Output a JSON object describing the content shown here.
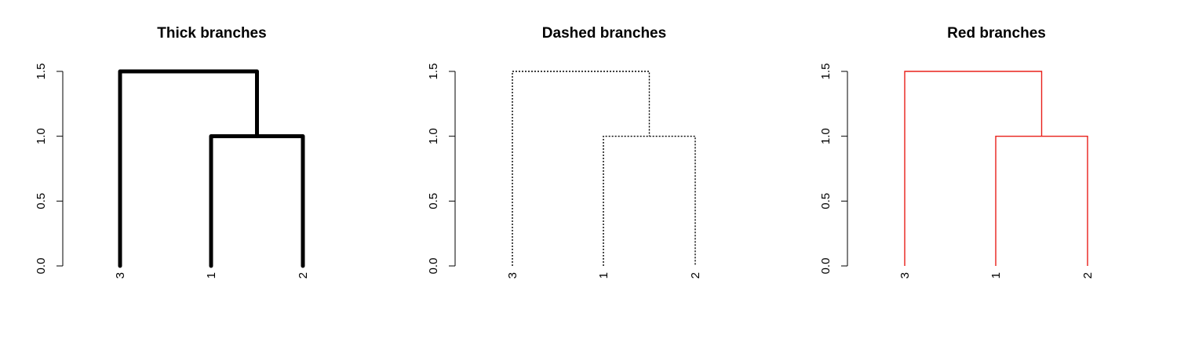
{
  "chart_data": [
    {
      "type": "dendrogram",
      "title": "Thick branches",
      "ylim": [
        0,
        1.5
      ],
      "yticks": [
        "0.0",
        "0.5",
        "1.0",
        "1.5"
      ],
      "leaves": [
        "3",
        "1",
        "2"
      ],
      "merges": [
        {
          "left": "1",
          "right": "2",
          "height": 1.0
        },
        {
          "left": "3",
          "right": "(1,2)",
          "height": 1.5
        }
      ],
      "branch_style": {
        "color": "#000000",
        "style": "thick"
      }
    },
    {
      "type": "dendrogram",
      "title": "Dashed branches",
      "ylim": [
        0,
        1.5
      ],
      "yticks": [
        "0.0",
        "0.5",
        "1.0",
        "1.5"
      ],
      "leaves": [
        "3",
        "1",
        "2"
      ],
      "merges": [
        {
          "left": "1",
          "right": "2",
          "height": 1.0
        },
        {
          "left": "3",
          "right": "(1,2)",
          "height": 1.5
        }
      ],
      "branch_style": {
        "color": "#000000",
        "style": "dashed"
      }
    },
    {
      "type": "dendrogram",
      "title": "Red branches",
      "ylim": [
        0,
        1.5
      ],
      "yticks": [
        "0.0",
        "0.5",
        "1.0",
        "1.5"
      ],
      "leaves": [
        "3",
        "1",
        "2"
      ],
      "merges": [
        {
          "left": "1",
          "right": "2",
          "height": 1.0
        },
        {
          "left": "3",
          "right": "(1,2)",
          "height": 1.5
        }
      ],
      "branch_style": {
        "color": "#e8201a",
        "style": "solid"
      }
    }
  ]
}
